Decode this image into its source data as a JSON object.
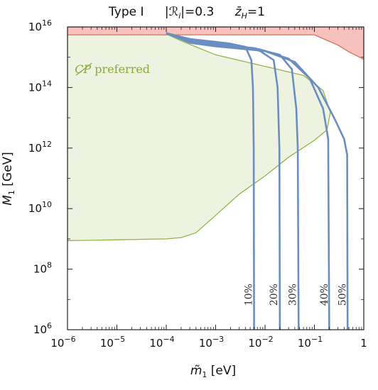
{
  "chart_data": {
    "type": "line",
    "title": {
      "prefix": "Type I",
      "r_label": "|ℛ",
      "r_sub": "i",
      "r_value": "|=0.3",
      "z_label": "z̄",
      "z_sub": "H",
      "z_value": "=1"
    },
    "xlabel": {
      "symbol": "m̃",
      "sub": "1",
      "unit": " [eV]"
    },
    "ylabel": {
      "symbol": "M",
      "sub": "1",
      "unit": " [GeV]"
    },
    "xscale": "log",
    "yscale": "log",
    "xlim": [
      1e-06,
      1
    ],
    "ylim": [
      1000000.0,
      1e+16
    ],
    "x_ticks": [
      {
        "value": 1e-06,
        "base": "10",
        "exp": "−6"
      },
      {
        "value": 1e-05,
        "base": "10",
        "exp": "−5"
      },
      {
        "value": 0.0001,
        "base": "10",
        "exp": "−4"
      },
      {
        "value": 0.001,
        "base": "10",
        "exp": "−3"
      },
      {
        "value": 0.01,
        "base": "10",
        "exp": "−2"
      },
      {
        "value": 0.1,
        "base": "10",
        "exp": "−1"
      },
      {
        "value": 1,
        "base": "1",
        "exp": ""
      }
    ],
    "y_ticks": [
      {
        "value": 1000000.0,
        "base": "10",
        "exp": "6"
      },
      {
        "value": 100000000.0,
        "base": "10",
        "exp": "8"
      },
      {
        "value": 10000000000.0,
        "base": "10",
        "exp": "10"
      },
      {
        "value": 1000000000000.0,
        "base": "10",
        "exp": "12"
      },
      {
        "value": 100000000000000.0,
        "base": "10",
        "exp": "14"
      },
      {
        "value": 1e+16,
        "base": "10",
        "exp": "16"
      }
    ],
    "regions": [
      {
        "label_main": "CP",
        "label_rest": " preferred",
        "label_at": [
          1.4e-06,
          300000000000000.0
        ],
        "fill": "#eef3e1",
        "stroke": "#93b447",
        "boundary": [
          [
            1e-06,
            880000000.0
          ],
          [
            3e-06,
            900000000.0
          ],
          [
            1e-05,
            930000000.0
          ],
          [
            0.0001,
            1000000000.0
          ],
          [
            0.0002,
            1100000000.0
          ],
          [
            0.0004,
            1600000000.0
          ],
          [
            0.001,
            6000000000.0
          ],
          [
            0.003,
            30000000000.0
          ],
          [
            0.01,
            120000000000.0
          ],
          [
            0.03,
            500000000000.0
          ],
          [
            0.1,
            1800000000000.0
          ],
          [
            0.18,
            4000000000000.0
          ],
          [
            0.21,
            15000000000000.0
          ],
          [
            0.15,
            80000000000000.0
          ],
          [
            0.06,
            250000000000000.0
          ],
          [
            0.01,
            500000000000000.0
          ],
          [
            0.001,
            1200000000000000.0
          ],
          [
            0.0002,
            3500000000000000.0
          ],
          [
            6e-05,
            8500000000000000.0
          ],
          [
            3e-05,
            1e+16
          ],
          [
            1e-06,
            1e+16
          ]
        ]
      },
      {
        "fill": "#f7c2bd",
        "stroke": "#e06d55",
        "boundary": [
          [
            1e-06,
            1e+16
          ],
          [
            1,
            1e+16
          ],
          [
            1,
            850000000000000.0
          ],
          [
            0.5,
            1500000000000000.0
          ],
          [
            0.3,
            2500000000000000.0
          ],
          [
            0.1,
            5500000000000000.0
          ],
          [
            0.063,
            5500000000000000.0
          ],
          [
            1e-06,
            5500000000000000.0
          ]
        ]
      }
    ],
    "series_color": "#6b8ec2",
    "series": [
      {
        "label": "10%",
        "label_at": [
          0.0062,
          5000000.0
        ],
        "points": [
          [
            0.0001,
            6300000000000000.0
          ],
          [
            0.0003,
            4000000000000000.0
          ],
          [
            0.001,
            3200000000000000.0
          ],
          [
            0.002,
            2800000000000000.0
          ],
          [
            0.004,
            2200000000000000.0
          ],
          [
            0.0053,
            800000000000000.0
          ],
          [
            0.0057,
            100000000000000.0
          ],
          [
            0.0059,
            1000000000000.0
          ],
          [
            0.006,
            1000000.0
          ]
        ]
      },
      {
        "label": "20%",
        "label_at": [
          0.02,
          5000000.0
        ],
        "points": [
          [
            0.0001,
            6300000000000000.0
          ],
          [
            0.0003,
            3600000000000000.0
          ],
          [
            0.001,
            2800000000000000.0
          ],
          [
            0.004,
            2200000000000000.0
          ],
          [
            0.008,
            1600000000000000.0
          ],
          [
            0.015,
            800000000000000.0
          ],
          [
            0.018,
            100000000000000.0
          ],
          [
            0.0195,
            1000000000000.0
          ],
          [
            0.02,
            1000000.0
          ]
        ]
      },
      {
        "label": "30%",
        "label_at": [
          0.048,
          5000000.0
        ],
        "points": [
          [
            0.0001,
            6300000000000000.0
          ],
          [
            0.0003,
            3400000000000000.0
          ],
          [
            0.001,
            2600000000000000.0
          ],
          [
            0.006,
            2000000000000000.0
          ],
          [
            0.02,
            1200000000000000.0
          ],
          [
            0.035,
            400000000000000.0
          ],
          [
            0.043,
            20000000000000.0
          ],
          [
            0.046,
            1000000000000.0
          ],
          [
            0.048,
            1000000.0
          ]
        ]
      },
      {
        "label": "40%",
        "label_at": [
          0.21,
          5000000.0
        ],
        "points": [
          [
            0.0001,
            6300000000000000.0
          ],
          [
            0.0003,
            3200000000000000.0
          ],
          [
            0.001,
            2500000000000000.0
          ],
          [
            0.008,
            1800000000000000.0
          ],
          [
            0.03,
            900000000000000.0
          ],
          [
            0.08,
            200000000000000.0
          ],
          [
            0.15,
            20000000000000.0
          ],
          [
            0.19,
            2000000000000.0
          ],
          [
            0.2,
            1000000.0
          ]
        ]
      },
      {
        "label": "50%",
        "label_at": [
          0.49,
          5000000.0
        ],
        "points": [
          [
            0.0001,
            6300000000000000.0
          ],
          [
            0.0003,
            3000000000000000.0
          ],
          [
            0.001,
            2300000000000000.0
          ],
          [
            0.01,
            1600000000000000.0
          ],
          [
            0.04,
            700000000000000.0
          ],
          [
            0.12,
            100000000000000.0
          ],
          [
            0.25,
            10000000000000.0
          ],
          [
            0.4,
            2000000000000.0
          ],
          [
            0.46,
            600000000000.0
          ],
          [
            0.47,
            1000000.0
          ]
        ]
      }
    ]
  }
}
